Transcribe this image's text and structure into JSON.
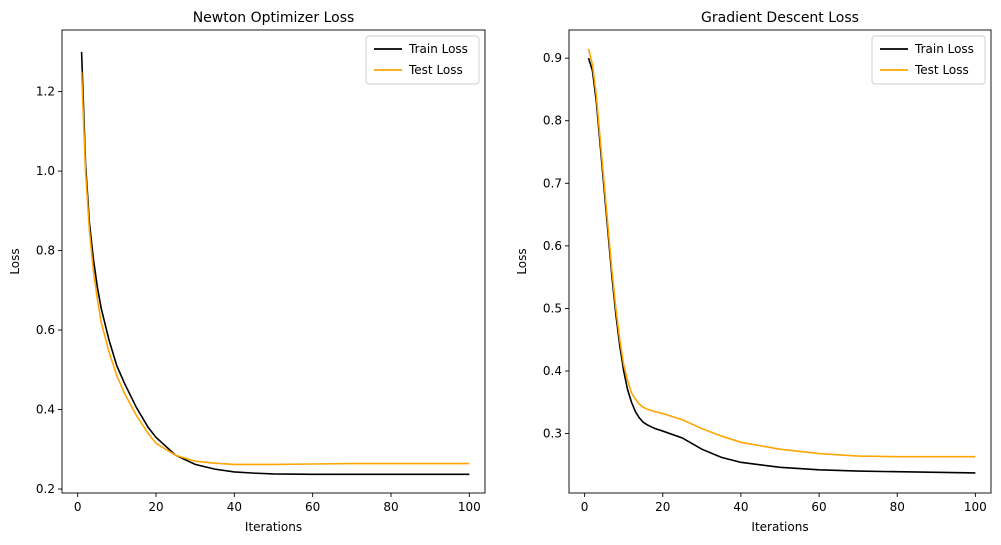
{
  "chart_data": [
    {
      "type": "line",
      "title": "Newton Optimizer Loss",
      "xlabel": "Iterations",
      "ylabel": "Loss",
      "xlim": [
        -4,
        104
      ],
      "ylim": [
        0.19,
        1.355
      ],
      "xticks": [
        0,
        20,
        40,
        60,
        80,
        100
      ],
      "yticks": [
        0.2,
        0.4,
        0.6,
        0.8,
        1.0,
        1.2
      ],
      "ytick_labels": [
        "0.2",
        "0.4",
        "0.6",
        "0.8",
        "1.0",
        "1.2"
      ],
      "legend_position": "top-right",
      "series": [
        {
          "name": "Train Loss",
          "color": "#000000",
          "x": [
            1,
            2,
            3,
            4,
            5,
            6,
            8,
            10,
            12,
            15,
            18,
            20,
            25,
            30,
            35,
            40,
            45,
            50,
            60,
            70,
            80,
            90,
            100
          ],
          "y": [
            1.3,
            1.02,
            0.87,
            0.78,
            0.71,
            0.655,
            0.575,
            0.51,
            0.465,
            0.405,
            0.355,
            0.33,
            0.285,
            0.262,
            0.25,
            0.243,
            0.24,
            0.238,
            0.237,
            0.237,
            0.237,
            0.237,
            0.237
          ]
        },
        {
          "name": "Test Loss",
          "color": "#ffa500",
          "x": [
            1,
            2,
            3,
            4,
            5,
            6,
            8,
            10,
            12,
            15,
            18,
            20,
            25,
            30,
            35,
            40,
            45,
            50,
            60,
            70,
            80,
            90,
            100
          ],
          "y": [
            1.25,
            1.0,
            0.85,
            0.75,
            0.68,
            0.62,
            0.545,
            0.485,
            0.44,
            0.385,
            0.34,
            0.315,
            0.285,
            0.27,
            0.265,
            0.262,
            0.262,
            0.262,
            0.263,
            0.264,
            0.264,
            0.264,
            0.264
          ]
        }
      ]
    },
    {
      "type": "line",
      "title": "Gradient Descent Loss",
      "xlabel": "Iterations",
      "ylabel": "Loss",
      "xlim": [
        -4,
        104
      ],
      "ylim": [
        0.205,
        0.945
      ],
      "xticks": [
        0,
        20,
        40,
        60,
        80,
        100
      ],
      "yticks": [
        0.3,
        0.4,
        0.5,
        0.6,
        0.7,
        0.8,
        0.9
      ],
      "ytick_labels": [
        "0.3",
        "0.4",
        "0.5",
        "0.6",
        "0.7",
        "0.8",
        "0.9"
      ],
      "legend_position": "top-right",
      "series": [
        {
          "name": "Train Loss",
          "color": "#000000",
          "x": [
            1,
            2,
            3,
            4,
            5,
            6,
            7,
            8,
            9,
            10,
            11,
            12,
            13,
            14,
            15,
            16,
            18,
            20,
            25,
            30,
            35,
            40,
            50,
            60,
            70,
            80,
            90,
            100
          ],
          "y": [
            0.9,
            0.88,
            0.83,
            0.76,
            0.69,
            0.62,
            0.55,
            0.49,
            0.44,
            0.4,
            0.37,
            0.35,
            0.335,
            0.325,
            0.318,
            0.314,
            0.308,
            0.304,
            0.293,
            0.275,
            0.262,
            0.254,
            0.246,
            0.242,
            0.24,
            0.239,
            0.238,
            0.237
          ]
        },
        {
          "name": "Test Loss",
          "color": "#ffa500",
          "x": [
            1,
            2,
            3,
            4,
            5,
            6,
            7,
            8,
            9,
            10,
            11,
            12,
            13,
            14,
            15,
            16,
            18,
            20,
            25,
            30,
            35,
            40,
            50,
            60,
            70,
            80,
            90,
            100
          ],
          "y": [
            0.915,
            0.89,
            0.84,
            0.77,
            0.7,
            0.63,
            0.56,
            0.5,
            0.45,
            0.41,
            0.385,
            0.365,
            0.355,
            0.347,
            0.342,
            0.339,
            0.335,
            0.332,
            0.322,
            0.308,
            0.296,
            0.286,
            0.275,
            0.268,
            0.264,
            0.263,
            0.263,
            0.263
          ]
        }
      ]
    }
  ]
}
